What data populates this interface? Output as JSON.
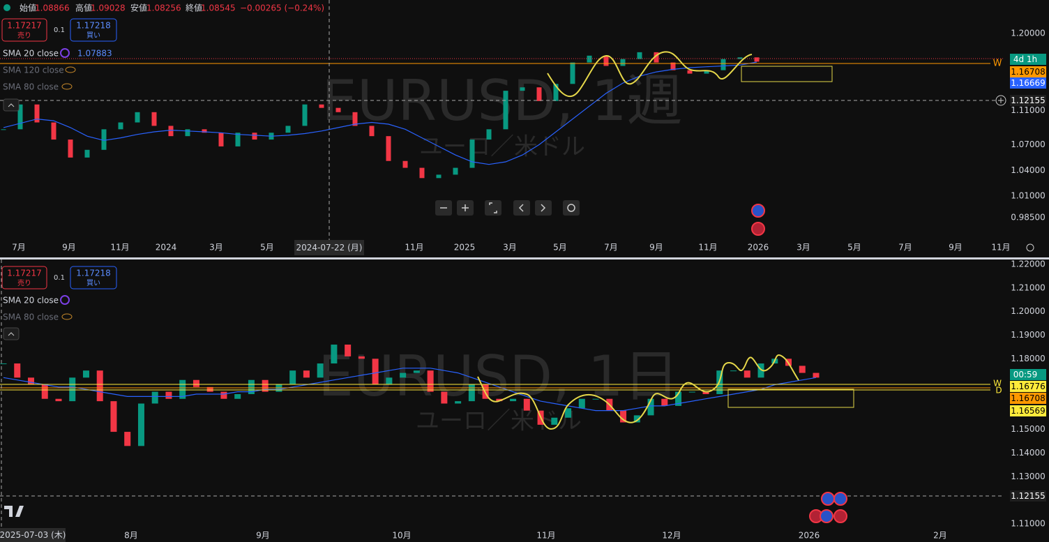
{
  "top_pane": {
    "ohlc_legend": {
      "open_label": "始値",
      "open": "1.08866",
      "high_label": "高値",
      "high": "1.09028",
      "low_label": "安値",
      "low": "1.08256",
      "close_label": "終値",
      "close": "1.08545",
      "change": "−0.00265 (−0.24%)"
    },
    "trade": {
      "sell_price": "1.17217",
      "sell": "売り",
      "quantity": "0.1",
      "buy_price": "1.17218",
      "buy": "買い"
    },
    "indicators": [
      {
        "name": "SMA 20 close",
        "value": "1.07883"
      },
      {
        "name": "SMA 120 close"
      },
      {
        "name": "SMA 80 close"
      }
    ],
    "watermark": {
      "symbol": "EURUSD, 1週",
      "description": "ユーロ／米ドル"
    },
    "price_badges": {
      "countdown": "4d 1h",
      "line_price": "1.16708",
      "sma_price": "1.16669",
      "crosshair_price": "1.12155",
      "line_tag": "W"
    },
    "crosshair_date": "2024-07-22 (月)",
    "time_labels": [
      "7月",
      "9月",
      "11月",
      "2024",
      "3月",
      "5月",
      "11月",
      "2025",
      "3月",
      "5月",
      "7月",
      "9月",
      "11月",
      "2026",
      "3月",
      "5月",
      "7月",
      "9月",
      "11月"
    ],
    "chart_data": {
      "type": "candlestick",
      "ylim": [
        0.962,
        1.239
      ],
      "yticks": [
        {
          "value": 1.2,
          "label": "1.20000"
        },
        {
          "value": 1.11,
          "label": "1.11000"
        },
        {
          "value": 1.07,
          "label": "1.07000"
        },
        {
          "value": 1.04,
          "label": "1.04000"
        },
        {
          "value": 1.01,
          "label": "1.01000"
        },
        {
          "value": 0.985,
          "label": "0.98500"
        }
      ],
      "close": [
        1.088,
        1.117,
        1.096,
        1.076,
        1.055,
        1.064,
        1.088,
        1.096,
        1.108,
        1.092,
        1.08,
        1.088,
        1.084,
        1.068,
        1.084,
        1.076,
        1.084,
        1.092,
        1.117,
        1.113,
        1.108,
        1.092,
        1.08,
        1.051,
        1.043,
        1.031,
        1.035,
        1.043,
        1.076,
        1.088,
        1.133,
        1.137,
        1.121,
        1.141,
        1.166,
        1.174,
        1.162,
        1.17,
        1.178,
        1.166,
        1.157,
        1.153,
        1.157,
        1.17,
        1.172,
        1.167
      ],
      "sma": [
        1.09,
        1.095,
        1.1,
        1.098,
        1.09,
        1.08,
        1.075,
        1.078,
        1.082,
        1.085,
        1.087,
        1.086,
        1.085,
        1.084,
        1.082,
        1.081,
        1.08,
        1.081,
        1.083,
        1.086,
        1.09,
        1.094,
        1.096,
        1.094,
        1.088,
        1.078,
        1.068,
        1.058,
        1.05,
        1.047,
        1.05,
        1.058,
        1.07,
        1.085,
        1.1,
        1.115,
        1.13,
        1.142,
        1.15,
        1.155,
        1.158,
        1.16,
        1.161,
        1.162,
        1.163,
        1.1665
      ],
      "up_color": "#089981",
      "down_color": "#f23645",
      "sma_color": "#2962ff"
    }
  },
  "bottom_pane": {
    "trade": {
      "sell_price": "1.17217",
      "sell": "売り",
      "quantity": "0.1",
      "buy_price": "1.17218",
      "buy": "買い"
    },
    "indicators": [
      {
        "name": "SMA 20 close"
      },
      {
        "name": "SMA 80 close"
      }
    ],
    "watermark": {
      "symbol": "EURUSD, 1日",
      "description": "ユーロ／米ドル"
    },
    "price_badges": {
      "countdown": "00:59",
      "line_price_1": "1.16776",
      "line_price_2": "1.16708",
      "line_price_3": "1.16569",
      "crosshair_price": "1.12155",
      "line_tag_1": "W",
      "line_tag_2": "D"
    },
    "crosshair_date": "2025-07-03 (木)",
    "time_labels": [
      "8月",
      "9月",
      "10月",
      "11月",
      "12月",
      "2026",
      "2月"
    ],
    "chart_data": {
      "type": "candlestick",
      "ylim": [
        1.1073,
        1.2221
      ],
      "yticks": [
        {
          "value": 1.22,
          "label": "1.22000"
        },
        {
          "value": 1.21,
          "label": "1.21000"
        },
        {
          "value": 1.2,
          "label": "1.20000"
        },
        {
          "value": 1.19,
          "label": "1.19000"
        },
        {
          "value": 1.18,
          "label": "1.18000"
        },
        {
          "value": 1.15,
          "label": "1.15000"
        },
        {
          "value": 1.14,
          "label": "1.14000"
        },
        {
          "value": 1.13,
          "label": "1.13000"
        },
        {
          "value": 1.11,
          "label": "1.11000"
        }
      ],
      "close": [
        1.178,
        1.172,
        1.169,
        1.163,
        1.162,
        1.172,
        1.175,
        1.162,
        1.149,
        1.143,
        1.161,
        1.166,
        1.163,
        1.171,
        1.168,
        1.166,
        1.163,
        1.165,
        1.171,
        1.166,
        1.169,
        1.175,
        1.172,
        1.178,
        1.186,
        1.181,
        1.18,
        1.169,
        1.172,
        1.174,
        1.175,
        1.166,
        1.161,
        1.162,
        1.169,
        1.163,
        1.162,
        1.163,
        1.158,
        1.152,
        1.155,
        1.159,
        1.163,
        1.163,
        1.158,
        1.153,
        1.156,
        1.163,
        1.16,
        1.166,
        1.166,
        1.165,
        1.175,
        1.175,
        1.172,
        1.178,
        1.18,
        1.177,
        1.174,
        1.172
      ],
      "sma": [
        1.172,
        1.171,
        1.17,
        1.169,
        1.168,
        1.168,
        1.167,
        1.166,
        1.165,
        1.164,
        1.164,
        1.164,
        1.164,
        1.164,
        1.165,
        1.165,
        1.165,
        1.166,
        1.166,
        1.167,
        1.167,
        1.168,
        1.169,
        1.17,
        1.171,
        1.172,
        1.173,
        1.174,
        1.175,
        1.176,
        1.176,
        1.176,
        1.175,
        1.174,
        1.172,
        1.17,
        1.168,
        1.166,
        1.164,
        1.162,
        1.161,
        1.16,
        1.159,
        1.158,
        1.158,
        1.158,
        1.159,
        1.16,
        1.16,
        1.161,
        1.162,
        1.163,
        1.164,
        1.165,
        1.166,
        1.167,
        1.169,
        1.17,
        1.171,
        1.172
      ],
      "up_color": "#089981",
      "down_color": "#f23645",
      "sma_color": "#2962ff"
    }
  }
}
